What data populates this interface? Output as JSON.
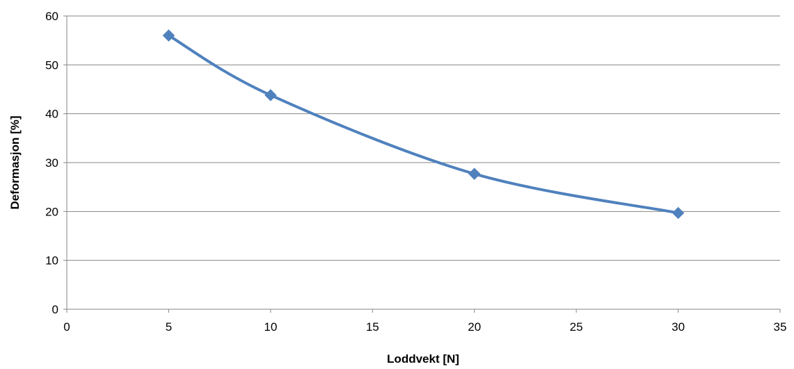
{
  "chart_data": {
    "type": "line",
    "title": "",
    "xlabel": "Loddvekt [N]",
    "ylabel": "Deformasjon [%]",
    "xlim": [
      0,
      35
    ],
    "ylim": [
      0,
      60
    ],
    "x_ticks": [
      0,
      5,
      10,
      15,
      20,
      25,
      30,
      35
    ],
    "y_ticks": [
      0,
      10,
      20,
      30,
      40,
      50,
      60
    ],
    "grid": "horizontal",
    "legend": "none",
    "smoothed": true,
    "marker": "diamond",
    "series": [
      {
        "x": [
          5,
          10,
          20,
          30
        ],
        "values": [
          56.0,
          43.8,
          27.7,
          19.7
        ],
        "color": "#4F81BD"
      }
    ]
  }
}
